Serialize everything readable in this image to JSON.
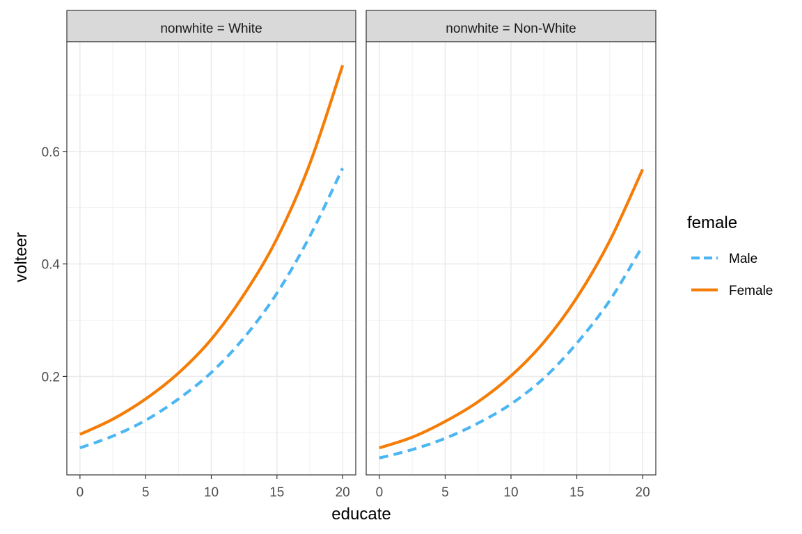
{
  "chart_data": {
    "type": "line",
    "xlabel": "educate",
    "ylabel": "volteer",
    "xlim": [
      -1,
      21
    ],
    "ylim": [
      0.025,
      0.795
    ],
    "x_ticks": [
      0,
      5,
      10,
      15,
      20
    ],
    "x_tick_labels": [
      "0",
      "5",
      "10",
      "15",
      "20"
    ],
    "y_ticks": [
      0.2,
      0.4,
      0.6
    ],
    "y_tick_labels": [
      "0.2",
      "0.4",
      "0.6"
    ],
    "grid": true,
    "legend": {
      "title": "female",
      "position": "right",
      "entries": [
        {
          "label": "Male",
          "color": "#4CB6F3",
          "dash": "dashed"
        },
        {
          "label": "Female",
          "color": "#F57D07",
          "dash": "solid"
        }
      ]
    },
    "facets": [
      {
        "label": "nonwhite = White",
        "series": [
          {
            "name": "Male",
            "x": [
              0,
              2.5,
              5,
              7.5,
              10,
              12.5,
              15,
              17.5,
              20
            ],
            "values": [
              0.073,
              0.094,
              0.122,
              0.16,
              0.207,
              0.269,
              0.348,
              0.449,
              0.57
            ]
          },
          {
            "name": "Female",
            "x": [
              0,
              2.5,
              5,
              7.5,
              10,
              12.5,
              15,
              17.5,
              20
            ],
            "values": [
              0.097,
              0.124,
              0.16,
              0.206,
              0.266,
              0.346,
              0.445,
              0.578,
              0.753
            ]
          }
        ]
      },
      {
        "label": "nonwhite = Non-White",
        "series": [
          {
            "name": "Male",
            "x": [
              0,
              2.5,
              5,
              7.5,
              10,
              12.5,
              15,
              17.5,
              20
            ],
            "values": [
              0.055,
              0.07,
              0.09,
              0.117,
              0.151,
              0.197,
              0.259,
              0.335,
              0.432
            ]
          },
          {
            "name": "Female",
            "x": [
              0,
              2.5,
              5,
              7.5,
              10,
              12.5,
              15,
              17.5,
              20
            ],
            "values": [
              0.073,
              0.092,
              0.12,
              0.155,
              0.201,
              0.261,
              0.34,
              0.441,
              0.568
            ]
          }
        ]
      }
    ]
  }
}
